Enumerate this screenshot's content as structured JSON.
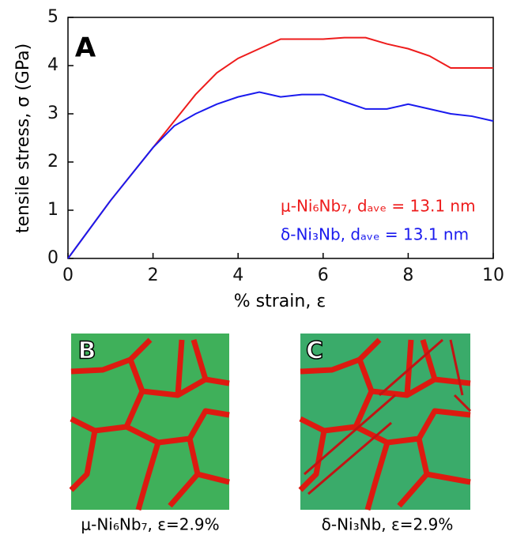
{
  "chart_data": {
    "type": "line",
    "annotation": "A",
    "x_label": "% strain, ε",
    "y_label": "tensile stress, σ (GPa)",
    "x": [
      0,
      0.5,
      1,
      1.5,
      2,
      2.5,
      3,
      3.5,
      4,
      4.5,
      5,
      5.5,
      6,
      6.5,
      7,
      7.5,
      8,
      8.5,
      9,
      9.5,
      10
    ],
    "series": [
      {
        "name": "μ-Ni₆Nb₇, dₐᵥₑ = 13.1 nm",
        "color": "#ee1c1c",
        "values": [
          0,
          0.6,
          1.2,
          1.75,
          2.3,
          2.85,
          3.4,
          3.85,
          4.15,
          4.35,
          4.55,
          4.55,
          4.55,
          4.58,
          4.58,
          4.45,
          4.35,
          4.2,
          3.95,
          3.95,
          3.95
        ]
      },
      {
        "name": "δ-Ni₃Nb, dₐᵥₑ = 13.1 nm",
        "color": "#1a1aee",
        "values": [
          0,
          0.6,
          1.2,
          1.75,
          2.3,
          2.75,
          3.0,
          3.2,
          3.35,
          3.45,
          3.35,
          3.4,
          3.4,
          3.25,
          3.1,
          3.1,
          3.2,
          3.1,
          3.0,
          2.95,
          2.85
        ]
      }
    ],
    "xlim": [
      0,
      10
    ],
    "xticks": [
      0,
      2,
      4,
      6,
      8,
      10
    ],
    "ylim": [
      0,
      5
    ],
    "yticks": [
      0,
      1,
      2,
      3,
      4,
      5
    ]
  },
  "panels": [
    {
      "label": "B",
      "caption": "μ-Ni₆Nb₇, ε=2.9%"
    },
    {
      "label": "C",
      "caption": "δ-Ni₃Nb, ε=2.9%"
    }
  ]
}
